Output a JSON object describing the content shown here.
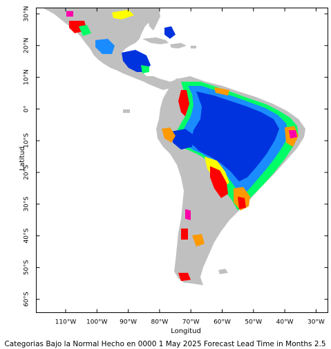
{
  "figure": {
    "caption": "Categorias Bajo la Normal Hecho en 0000 1 May 2025 Forecast Lead Time in Months 2.5",
    "xlabel": "Longitud",
    "ylabel": "Latitud",
    "lon_range": [
      -120,
      -25
    ],
    "lat_range": [
      -65,
      35
    ]
  },
  "axes": {
    "lon_ticks": [
      {
        "value": -110,
        "label": "110°W"
      },
      {
        "value": -100,
        "label": "100°W"
      },
      {
        "value": -90,
        "label": "90°W"
      },
      {
        "value": -80,
        "label": "80°W"
      },
      {
        "value": -70,
        "label": "70°W"
      },
      {
        "value": -60,
        "label": "60°W"
      },
      {
        "value": -50,
        "label": "50°W"
      },
      {
        "value": -40,
        "label": "40°W"
      },
      {
        "value": -30,
        "label": "30°W"
      }
    ],
    "lat_ticks": [
      {
        "value": 30,
        "label": "30°N"
      },
      {
        "value": 20,
        "label": "20°N"
      },
      {
        "value": 10,
        "label": "10°N"
      },
      {
        "value": 0,
        "label": "0°"
      },
      {
        "value": -10,
        "label": "10°S"
      },
      {
        "value": -20,
        "label": "20°S"
      },
      {
        "value": -30,
        "label": "30°S"
      },
      {
        "value": -40,
        "label": "40°S"
      },
      {
        "value": -50,
        "label": "50°S"
      },
      {
        "value": -60,
        "label": "60°S"
      }
    ]
  },
  "colors": {
    "land": "#c0c0c0",
    "strong_below": "#0033dd",
    "below": "#1a8cff",
    "weak_below": "#33ccff",
    "transition": "#00ff66",
    "yellow": "#ffff00",
    "orange": "#ff9900",
    "red": "#ff0000",
    "magenta": "#ff00aa",
    "frame": "#000000"
  }
}
